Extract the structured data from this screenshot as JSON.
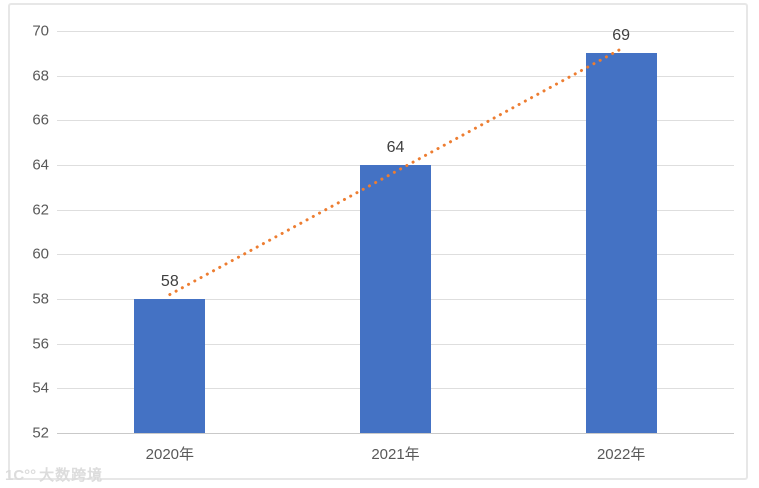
{
  "watermark": {
    "logo": "1C°°",
    "text": "大数跨境"
  },
  "chart_data": {
    "type": "bar",
    "title": "",
    "xlabel": "",
    "ylabel": "",
    "categories": [
      "2020年",
      "2021年",
      "2022年"
    ],
    "values": [
      58,
      64,
      69
    ],
    "data_labels": [
      "58",
      "64",
      "69"
    ],
    "ylim": [
      52,
      70
    ],
    "yticks": [
      52,
      54,
      56,
      58,
      60,
      62,
      64,
      66,
      68,
      70
    ],
    "grid": true,
    "legend": "none",
    "bar_color": "#4472C4",
    "axis_label_color": "#595959",
    "data_label_color": "#3F3F3F",
    "trendline": {
      "type": "linear",
      "style": "dotted",
      "color": "#ED7D31",
      "values": [
        58.2,
        63.7,
        69.2
      ]
    }
  }
}
